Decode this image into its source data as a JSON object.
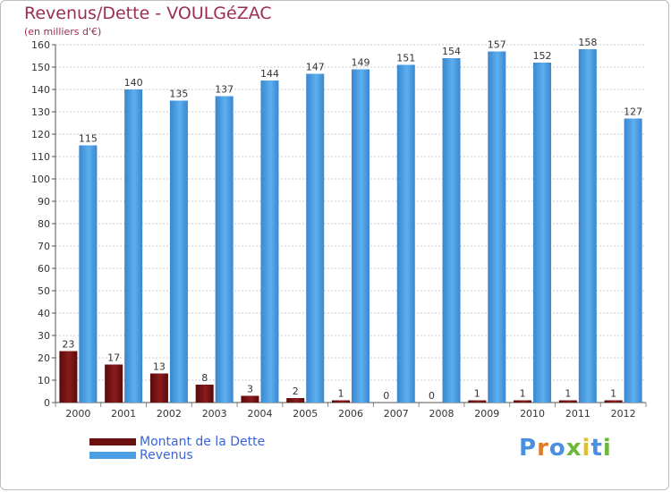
{
  "chart_data": {
    "type": "bar",
    "title": "Revenus/Dette - VOULGéZAC",
    "subtitle": "(en milliers d'€)",
    "categories": [
      "2000",
      "2001",
      "2002",
      "2003",
      "2004",
      "2005",
      "2006",
      "2007",
      "2008",
      "2009",
      "2010",
      "2011",
      "2012"
    ],
    "series": [
      {
        "name": "Montant de la Dette",
        "color": "#7a1515",
        "values": [
          23,
          17,
          13,
          8,
          3,
          2,
          1,
          0,
          0,
          1,
          1,
          1,
          1
        ]
      },
      {
        "name": "Revenus",
        "color": "#4a9fe4",
        "values": [
          115,
          140,
          135,
          137,
          144,
          147,
          149,
          151,
          154,
          157,
          152,
          158,
          127
        ]
      }
    ],
    "ylim": [
      0,
      160
    ],
    "yticks": [
      0,
      10,
      20,
      30,
      40,
      50,
      60,
      70,
      80,
      90,
      100,
      110,
      120,
      130,
      140,
      150,
      160
    ],
    "grid": true,
    "legend": "bottom-left"
  },
  "brand": {
    "letters": [
      "P",
      "r",
      "o",
      "x",
      "i",
      "t",
      "i"
    ],
    "colors": [
      "#4a8fe0",
      "#e07b26",
      "#4a8fe0",
      "#6cb83a",
      "#e0c030",
      "#4a8fe0",
      "#6cb83a"
    ]
  }
}
